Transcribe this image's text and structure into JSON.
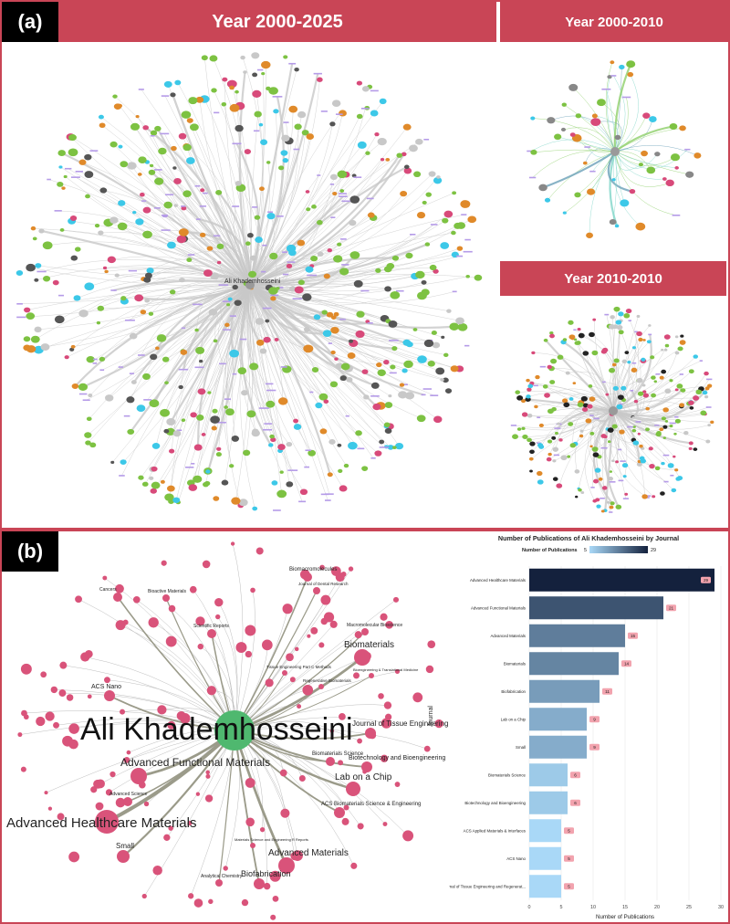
{
  "panel_a": {
    "tag": "(a)",
    "banners": {
      "main": "Year 2000-2025",
      "top_right": "Year 2000-2010",
      "bottom_right": "Year 2010-2010"
    },
    "center_label": "Ali Khademhosseini"
  },
  "panel_b": {
    "tag": "(b)",
    "network": {
      "center": "Ali Khademhosseini",
      "large_labels": [
        "Advanced Healthcare Materials",
        "Advanced Functional Materials",
        "Biomaterials",
        "Lab on a Chip",
        "Advanced Materials",
        "Biofabrication",
        "Small",
        "ACS Nano",
        "Journal of Tissue Engineering and Regenerative Medicine",
        "Biotechnology and Bioengineering",
        "ACS Biomaterials Science & Engineering",
        "Biomaterials Science",
        "Biomacromolecules",
        "Scientific Reports",
        "Journal of Dental Research",
        "Advanced Science",
        "Cancers",
        "Bioactive Materials",
        "Macromolecular Bioscience",
        "Regenerative Biomaterials",
        "Tissue Engineering Part C Methods",
        "Bioengineering & Translational Medicine",
        "Analytical Chemistry",
        "Materials Science and Engineering R Reports"
      ],
      "side_label": "Journal"
    }
  },
  "chart_data": {
    "type": "bar",
    "orientation": "horizontal",
    "title": "Number of Publications of Ali Khademhosseini by Journal",
    "color_legend": {
      "label": "Number of Publications",
      "min": 5,
      "max": 29
    },
    "categories": [
      "Advanced Healthcare Materials",
      "Advanced Functional Materials",
      "Advanced Materials",
      "Biomaterials",
      "Biofabrication",
      "Lab on a Chip",
      "Small",
      "Biomaterials Science",
      "Biotechnology and Bioengineering",
      "ACS Applied Materials & Interfaces",
      "ACS Nano",
      "Journal of Tissue Engineering and Regenerat..."
    ],
    "values": [
      29,
      21,
      15,
      14,
      11,
      9,
      9,
      6,
      6,
      5,
      5,
      5
    ],
    "xlabel": "Number of Publications",
    "ylabel": "Journal",
    "xlim": [
      0,
      30
    ],
    "xticks": [
      0,
      5,
      10,
      15,
      20,
      25,
      30
    ],
    "grid": true,
    "colors": {
      "low": "#a9d8f7",
      "high": "#14213d",
      "label_bg": "#f2a3ae"
    }
  }
}
